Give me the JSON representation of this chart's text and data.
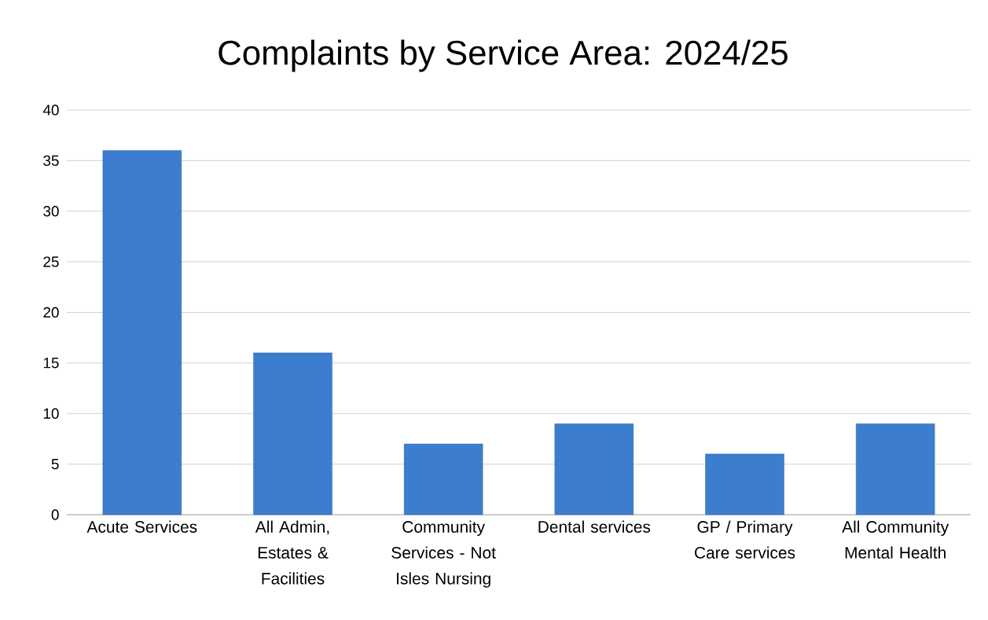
{
  "chart_data": {
    "type": "bar",
    "title": "Complaints by Service Area: 2024/25",
    "categories": [
      "Acute Services",
      "All Admin, Estates & Facilities",
      "Community Services - Not Isles Nursing",
      "Dental services",
      "GP / Primary Care services",
      "All Community Mental Health"
    ],
    "values": [
      36,
      16,
      7,
      9,
      6,
      9
    ],
    "color": "#3c7dcf",
    "ylim": [
      0,
      40
    ],
    "yticks": [
      0,
      5,
      10,
      15,
      20,
      25,
      30,
      35,
      40
    ],
    "grid": "y"
  }
}
